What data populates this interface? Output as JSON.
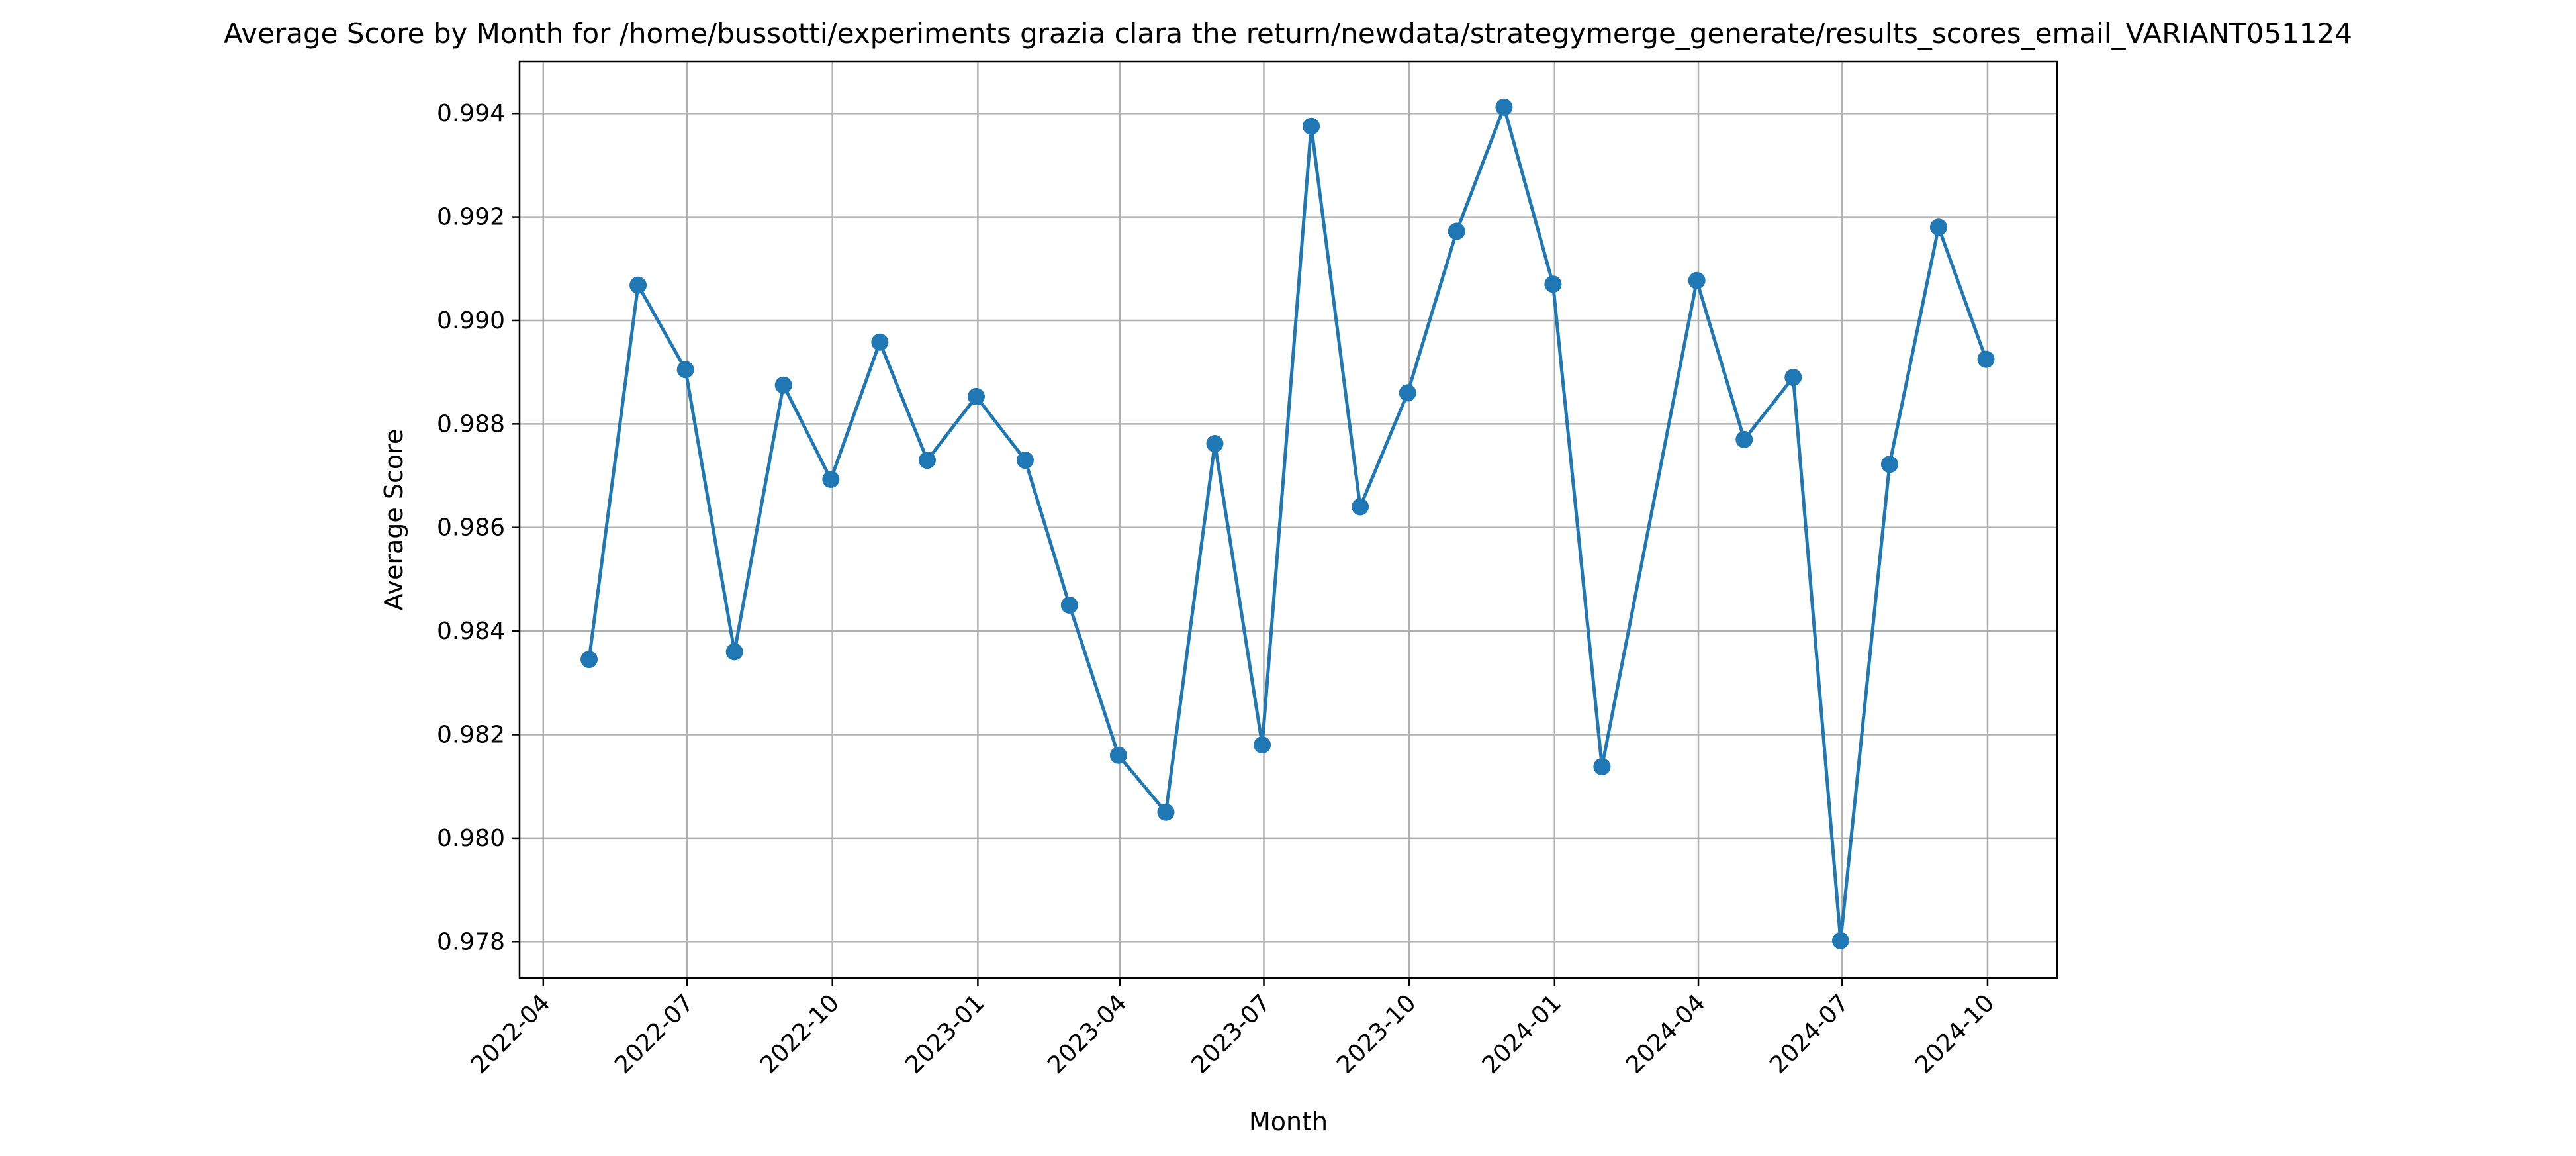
{
  "chart_data": {
    "type": "line",
    "title": "Average Score by Month for /home/bussotti/experiments grazia clara the return/newdata/strategymerge_generate/results_scores_email_VARIANT051124",
    "xlabel": "Month",
    "ylabel": "Average Score",
    "x_tick_labels": [
      "2022-04",
      "2022-07",
      "2022-10",
      "2023-01",
      "2023-04",
      "2023-07",
      "2023-10",
      "2024-01",
      "2024-04",
      "2024-07",
      "2024-10"
    ],
    "y_tick_labels": [
      "0.978",
      "0.980",
      "0.982",
      "0.984",
      "0.986",
      "0.988",
      "0.990",
      "0.992",
      "0.994"
    ],
    "ylim": [
      0.9773,
      0.995
    ],
    "xlim": [
      "2022-03-17",
      "2024-11-14"
    ],
    "grid": true,
    "line_color": "#1f77b4",
    "marker": "circle",
    "series": [
      {
        "x": [
          "2022-04-30",
          "2022-05-31",
          "2022-06-30",
          "2022-07-31",
          "2022-08-31",
          "2022-09-30",
          "2022-10-31",
          "2022-11-30",
          "2022-12-31",
          "2023-01-31",
          "2023-02-28",
          "2023-03-31",
          "2023-04-30",
          "2023-05-31",
          "2023-06-30",
          "2023-07-31",
          "2023-08-31",
          "2023-09-30",
          "2023-10-31",
          "2023-11-30",
          "2023-12-31",
          "2024-01-31",
          "2024-03-31",
          "2024-04-30",
          "2024-05-31",
          "2024-06-30",
          "2024-07-31",
          "2024-08-31",
          "2024-09-30"
        ],
        "values": [
          0.98345,
          0.99068,
          0.98905,
          0.9836,
          0.98875,
          0.98693,
          0.98958,
          0.9873,
          0.98853,
          0.9873,
          0.9845,
          0.9816,
          0.9805,
          0.98762,
          0.9818,
          0.99375,
          0.9864,
          0.9886,
          0.99172,
          0.99412,
          0.9907,
          0.98138,
          0.99077,
          0.9877,
          0.9889,
          0.97802,
          0.98722,
          0.9918,
          0.98925
        ]
      }
    ]
  }
}
